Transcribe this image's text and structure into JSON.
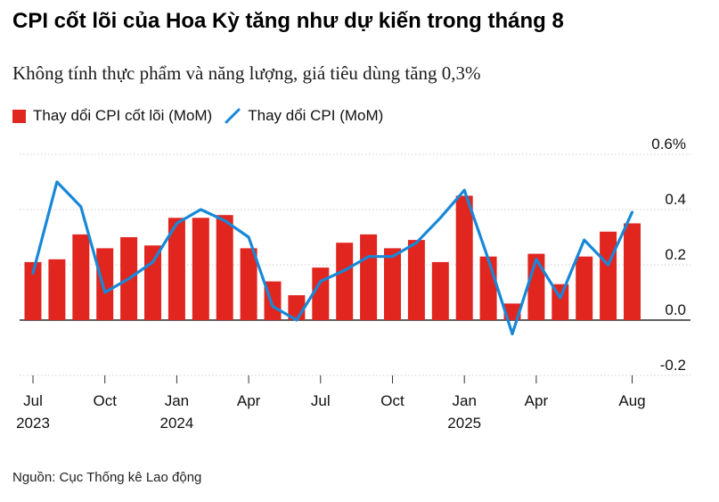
{
  "title": "CPI cốt lõi của Hoa Kỳ tăng như dự kiến trong tháng 8",
  "subtitle": "Không tính thực phẩm và năng lượng, giá tiêu dùng tăng 0,3%",
  "source": "Nguồn: Cục Thống kê Lao động",
  "colors": {
    "bar": "#e12620",
    "line": "#1788d8"
  },
  "chart_data": {
    "type": "bar",
    "series": [
      {
        "name": "Thay dổi CPI cốt lõi (MoM)",
        "type": "bar",
        "values": [
          0.21,
          0.22,
          0.31,
          0.26,
          0.3,
          0.27,
          0.37,
          0.37,
          0.38,
          0.26,
          0.14,
          0.09,
          0.19,
          0.28,
          0.31,
          0.26,
          0.29,
          0.21,
          0.45,
          0.23,
          0.06,
          0.24,
          0.13,
          0.23,
          0.32,
          0.35
        ]
      },
      {
        "name": "Thay dổi CPI (MoM)",
        "type": "line",
        "values": [
          0.17,
          0.5,
          0.41,
          0.1,
          0.15,
          0.21,
          0.35,
          0.4,
          0.36,
          0.3,
          0.05,
          0.0,
          0.14,
          0.18,
          0.23,
          0.23,
          0.28,
          0.37,
          0.47,
          0.22,
          -0.05,
          0.22,
          0.08,
          0.29,
          0.2,
          0.39
        ]
      }
    ],
    "x": [
      "Jul 2023",
      "Aug 2023",
      "Sep 2023",
      "Oct 2023",
      "Nov 2023",
      "Dec 2023",
      "Jan 2024",
      "Feb 2024",
      "Mar 2024",
      "Apr 2024",
      "May 2024",
      "Jun 2024",
      "Jul 2024",
      "Aug 2024",
      "Sep 2024",
      "Oct 2024",
      "Nov 2024",
      "Dec 2024",
      "Jan 2025",
      "Feb 2025",
      "Mar 2025",
      "Apr 2025",
      "May 2025",
      "Jun 2025",
      "Jul 2025",
      "Aug 2025"
    ],
    "x_tick_labels": [
      {
        "index": 0,
        "label": "Jul",
        "year": "2023"
      },
      {
        "index": 3,
        "label": "Oct",
        "year": ""
      },
      {
        "index": 6,
        "label": "Jan",
        "year": "2024"
      },
      {
        "index": 9,
        "label": "Apr",
        "year": ""
      },
      {
        "index": 12,
        "label": "Jul",
        "year": ""
      },
      {
        "index": 15,
        "label": "Oct",
        "year": ""
      },
      {
        "index": 18,
        "label": "Jan",
        "year": "2025"
      },
      {
        "index": 21,
        "label": "Apr",
        "year": ""
      },
      {
        "index": 25,
        "label": "Aug",
        "year": ""
      }
    ],
    "y_ticks": [
      {
        "value": 0.6,
        "label": "0.6%"
      },
      {
        "value": 0.4,
        "label": "0.4"
      },
      {
        "value": 0.2,
        "label": "0.2"
      },
      {
        "value": 0.0,
        "label": "0.0"
      },
      {
        "value": -0.2,
        "label": "-0.2"
      }
    ],
    "ylim": [
      -0.2,
      0.6
    ],
    "y_axis_side": "right",
    "grid": true,
    "legend_position": "top-left"
  }
}
